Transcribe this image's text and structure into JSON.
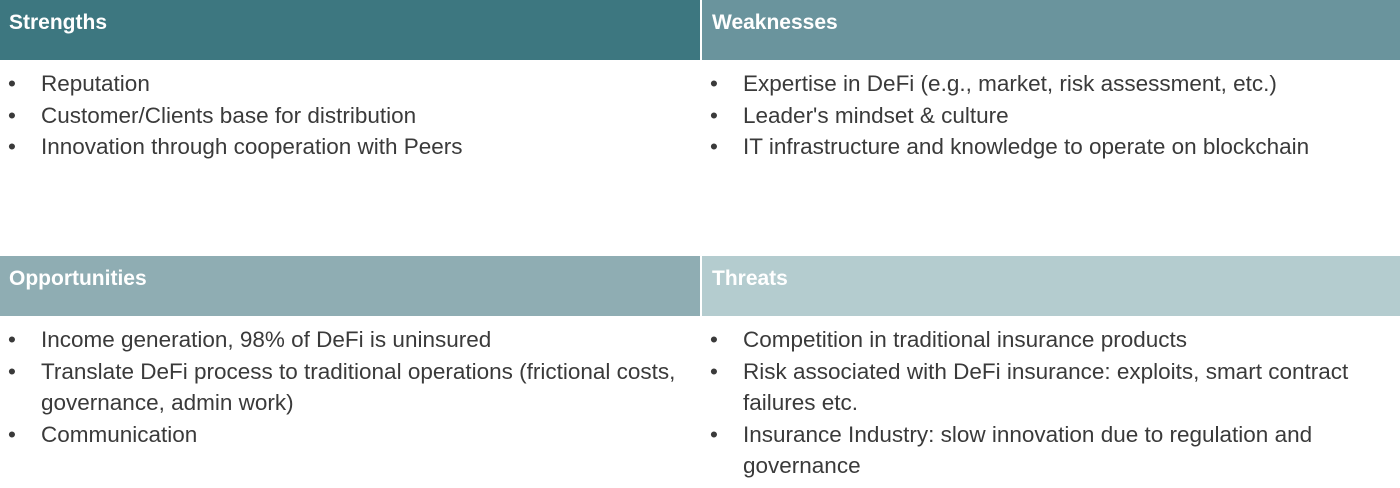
{
  "strengths": {
    "title": "Strengths",
    "items": [
      "Reputation",
      "Customer/Clients base for distribution",
      "Innovation through cooperation with Peers"
    ]
  },
  "weaknesses": {
    "title": "Weaknesses",
    "items": [
      "Expertise in DeFi (e.g., market, risk assessment, etc.)",
      "Leader's mindset & culture",
      "IT infrastructure and knowledge to operate on blockchain"
    ]
  },
  "opportunities": {
    "title": "Opportunities",
    "items": [
      "Income generation, 98% of DeFi is uninsured",
      "Translate DeFi process to traditional operations (frictional costs, governance, admin work)",
      "Communication"
    ]
  },
  "threats": {
    "title": "Threats",
    "items": [
      "Competition in traditional insurance products",
      "Risk associated with DeFi insurance: exploits, smart contract failures etc.",
      "Insurance Industry: slow innovation due to regulation and governance"
    ]
  },
  "bullet": "•",
  "colors": {
    "strengths_header": "#3d7780",
    "weaknesses_header": "#6a949d",
    "opportunities_header": "#8fadb3",
    "threats_header": "#b4cccf",
    "text": "#3a3a3a"
  }
}
